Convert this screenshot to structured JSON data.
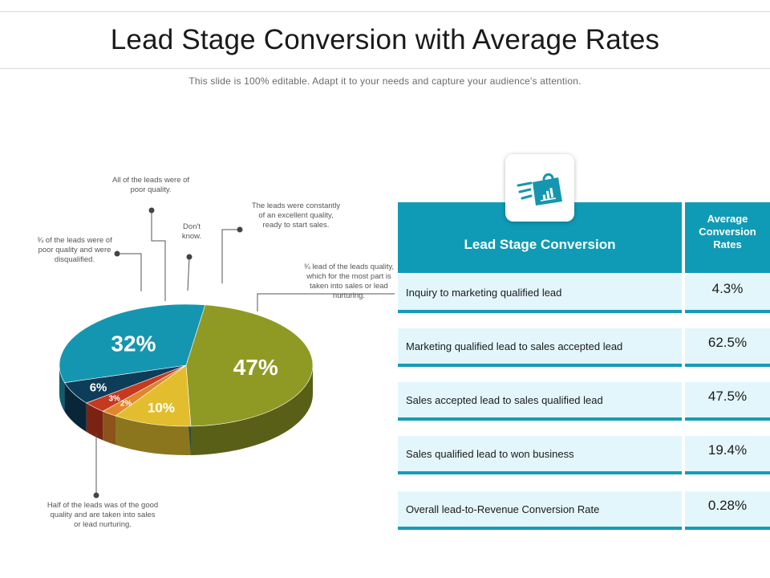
{
  "header": {
    "title": "Lead Stage Conversion with Average Rates",
    "subtitle": "This slide is 100% editable. Adapt it to your needs and capture your audience's attention."
  },
  "chart_data": {
    "type": "pie",
    "slices": [
      {
        "label": "47%",
        "value": 47,
        "color": "#8f9a24"
      },
      {
        "label": "10%",
        "value": 10,
        "color": "#e2be2e"
      },
      {
        "label": "2%",
        "value": 2,
        "color": "#e2862b"
      },
      {
        "label": "3%",
        "value": 3,
        "color": "#c5391f"
      },
      {
        "label": "6%",
        "value": 6,
        "color": "#0e3d5a"
      },
      {
        "label": "32%",
        "value": 32,
        "color": "#1596b0"
      }
    ],
    "annotations": [
      "Half of the leads was of the good quality and are taken into sales or lead nurturing.",
      "¾ of the leads were of poor quality and were disqualified.",
      "All of the leads were of poor quality.",
      "Don't know.",
      "The leads were constantly of an excellent quality, ready to start sales.",
      "¾ lead of the leads quality, which for the most part is taken into sales or lead nurturing."
    ]
  },
  "table": {
    "icon": "shopping-bag-chart-icon",
    "header_left": "Lead Stage Conversion",
    "header_right": "Average Conversion Rates",
    "rows": [
      {
        "stage": "Inquiry to marketing qualified lead",
        "rate": "4.3%"
      },
      {
        "stage": "Marketing qualified lead to sales accepted lead",
        "rate": "62.5%"
      },
      {
        "stage": "Sales accepted lead to sales qualified lead",
        "rate": "47.5%"
      },
      {
        "stage": "Sales qualified lead to won business",
        "rate": "19.4%"
      },
      {
        "stage": "Overall lead-to-Revenue Conversion Rate",
        "rate": "0.28%"
      }
    ]
  },
  "colors": {
    "accent": "#0f9bb5",
    "row_bg": "#e3f6fb"
  }
}
